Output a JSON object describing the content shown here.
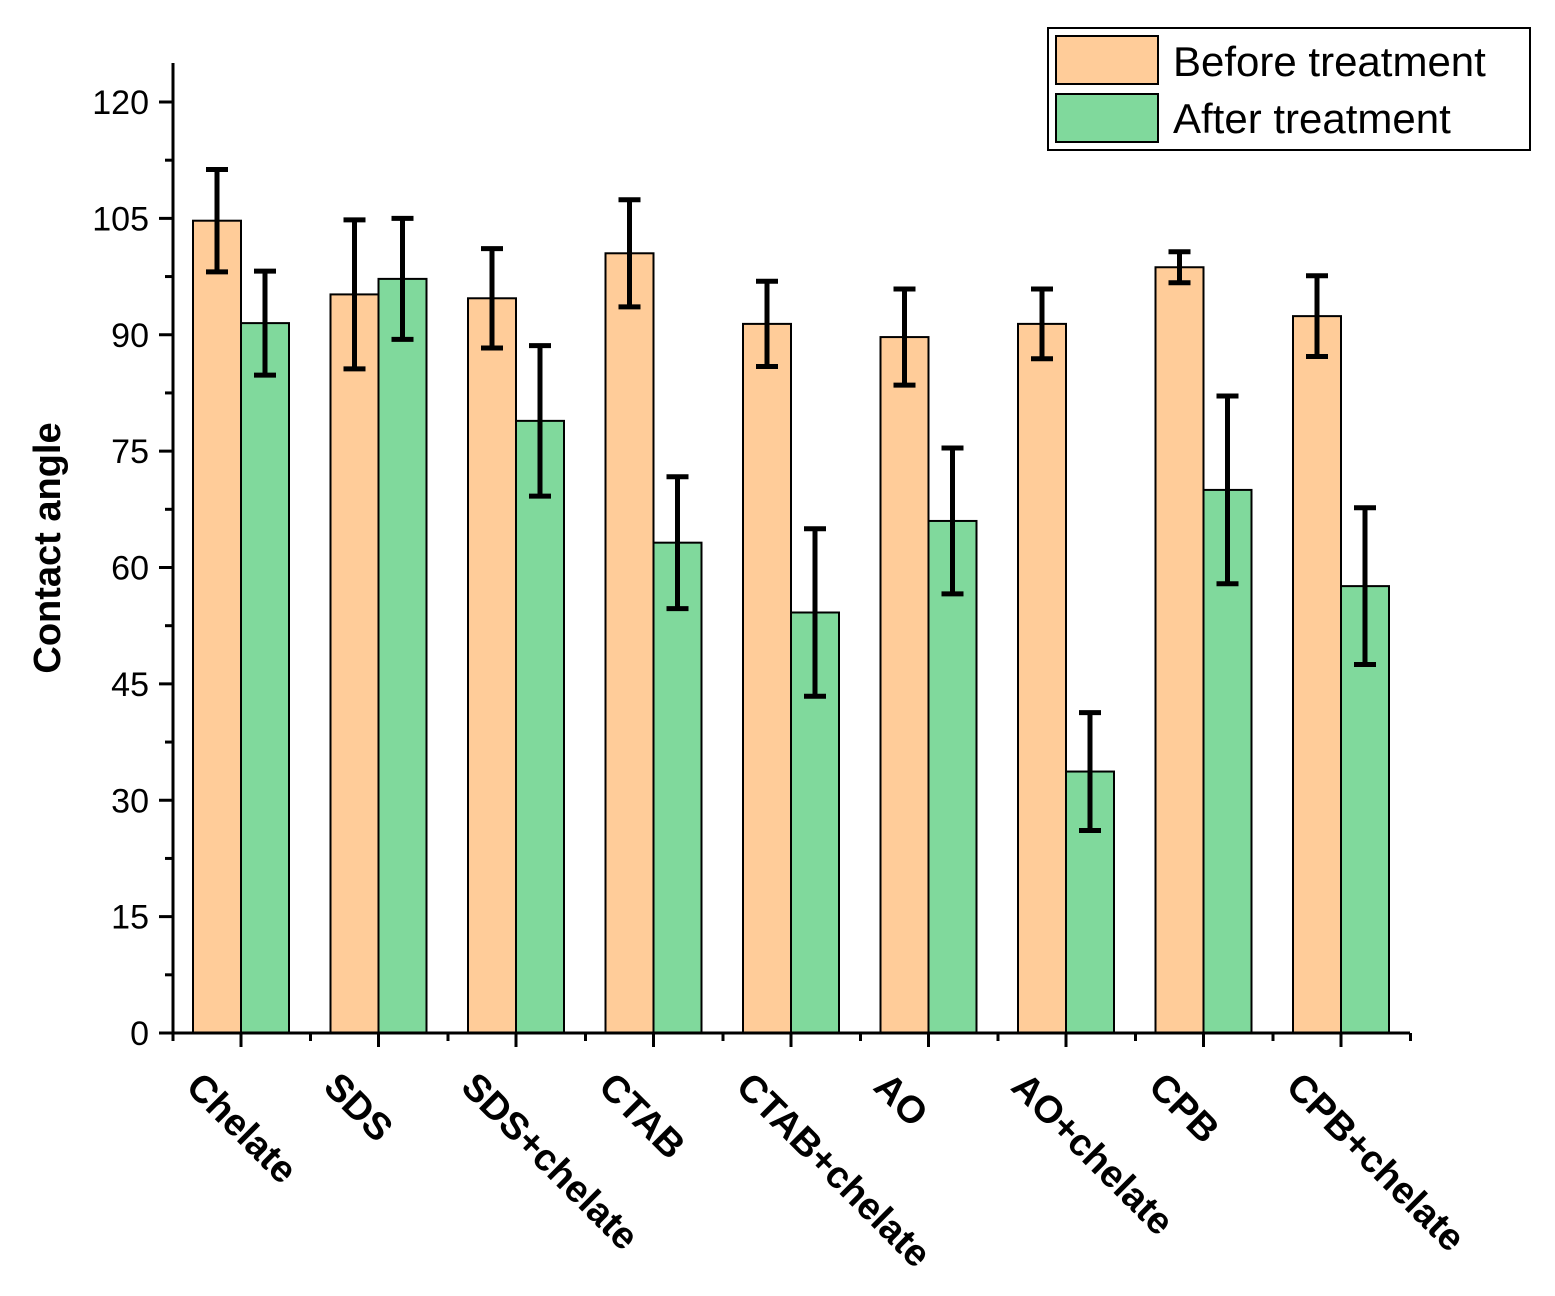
{
  "chart_data": {
    "type": "bar",
    "title": "",
    "xlabel": "",
    "ylabel": "Contact angle",
    "ylim": [
      0,
      125
    ],
    "yticks": [
      0,
      15,
      30,
      45,
      60,
      75,
      90,
      105,
      120
    ],
    "categories": [
      "Chelate",
      "SDS",
      "SDS+chelate",
      "CTAB",
      "CTAB+chelate",
      "AO",
      "AO+chelate",
      "CPB",
      "CPB+chelate"
    ],
    "series": [
      {
        "name": "Before treatment",
        "color": "#FFCC99",
        "values": [
          104.7,
          95.2,
          94.7,
          100.5,
          91.4,
          89.7,
          91.4,
          98.7,
          92.4
        ],
        "errors": [
          6.6,
          9.6,
          6.4,
          6.9,
          5.5,
          6.2,
          4.5,
          2.0,
          5.2
        ]
      },
      {
        "name": "After treatment",
        "color": "#80D99C",
        "values": [
          91.5,
          97.2,
          78.9,
          63.2,
          54.2,
          66.0,
          33.7,
          70.0,
          57.6
        ],
        "errors": [
          6.7,
          7.8,
          9.7,
          8.5,
          10.8,
          9.4,
          7.6,
          12.1,
          10.1
        ]
      }
    ],
    "legend_position": "top-right",
    "grid": false
  }
}
